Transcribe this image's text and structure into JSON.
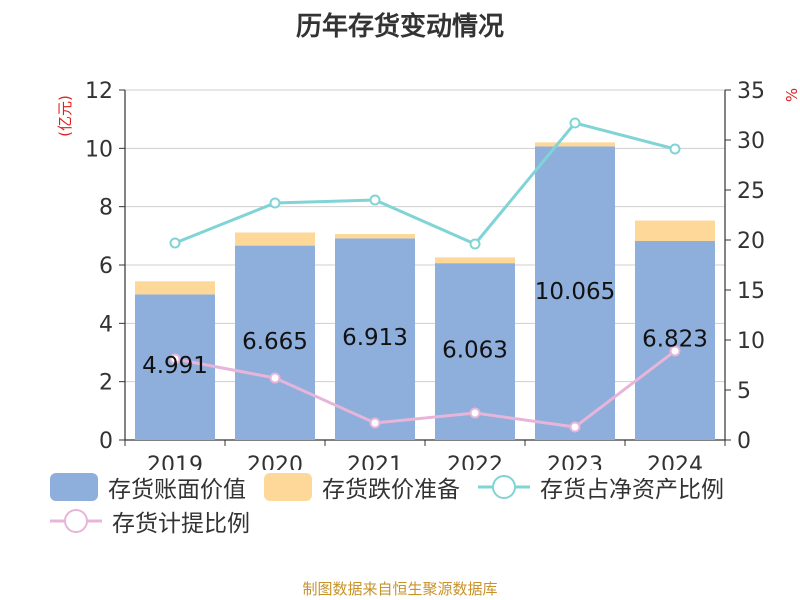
{
  "title": "历年存货变动情况",
  "source": "制图数据来自恒生聚源数据库",
  "chart_data": {
    "type": "bar",
    "categories": [
      "2019",
      "2020",
      "2021",
      "2022",
      "2023",
      "2024"
    ],
    "series": [
      {
        "name": "存货账面价值",
        "kind": "bar",
        "axis": "left",
        "color": "#8eaedb",
        "values": [
          4.991,
          6.665,
          6.913,
          6.063,
          10.065,
          6.823
        ],
        "labels": [
          "4.991",
          "6.665",
          "6.913",
          "6.063",
          "10.065",
          "6.823"
        ]
      },
      {
        "name": "存货跌价准备",
        "kind": "bar",
        "axis": "left",
        "stacked": true,
        "color": "#fed898",
        "values": [
          0.45,
          0.45,
          0.15,
          0.2,
          0.14,
          0.7
        ]
      },
      {
        "name": "存货占净资产比例",
        "kind": "line",
        "axis": "right",
        "color": "#80d4d6",
        "values": [
          19.7,
          23.7,
          24.0,
          19.6,
          31.7,
          29.1
        ]
      },
      {
        "name": "存货计提比例",
        "kind": "line",
        "axis": "right",
        "color": "#e7b5da",
        "values": [
          8.1,
          6.2,
          1.7,
          2.7,
          1.3,
          8.9
        ]
      }
    ],
    "left_axis": {
      "label": "(亿元)",
      "ylim": [
        0,
        12
      ],
      "ticks": [
        "0",
        "2",
        "4",
        "6",
        "8",
        "10",
        "12"
      ]
    },
    "right_axis": {
      "label": "%",
      "ylim": [
        0,
        35
      ],
      "ticks": [
        "0",
        "5",
        "10",
        "15",
        "20",
        "25",
        "30",
        "35"
      ]
    },
    "grid": true,
    "legend_position": "bottom"
  }
}
